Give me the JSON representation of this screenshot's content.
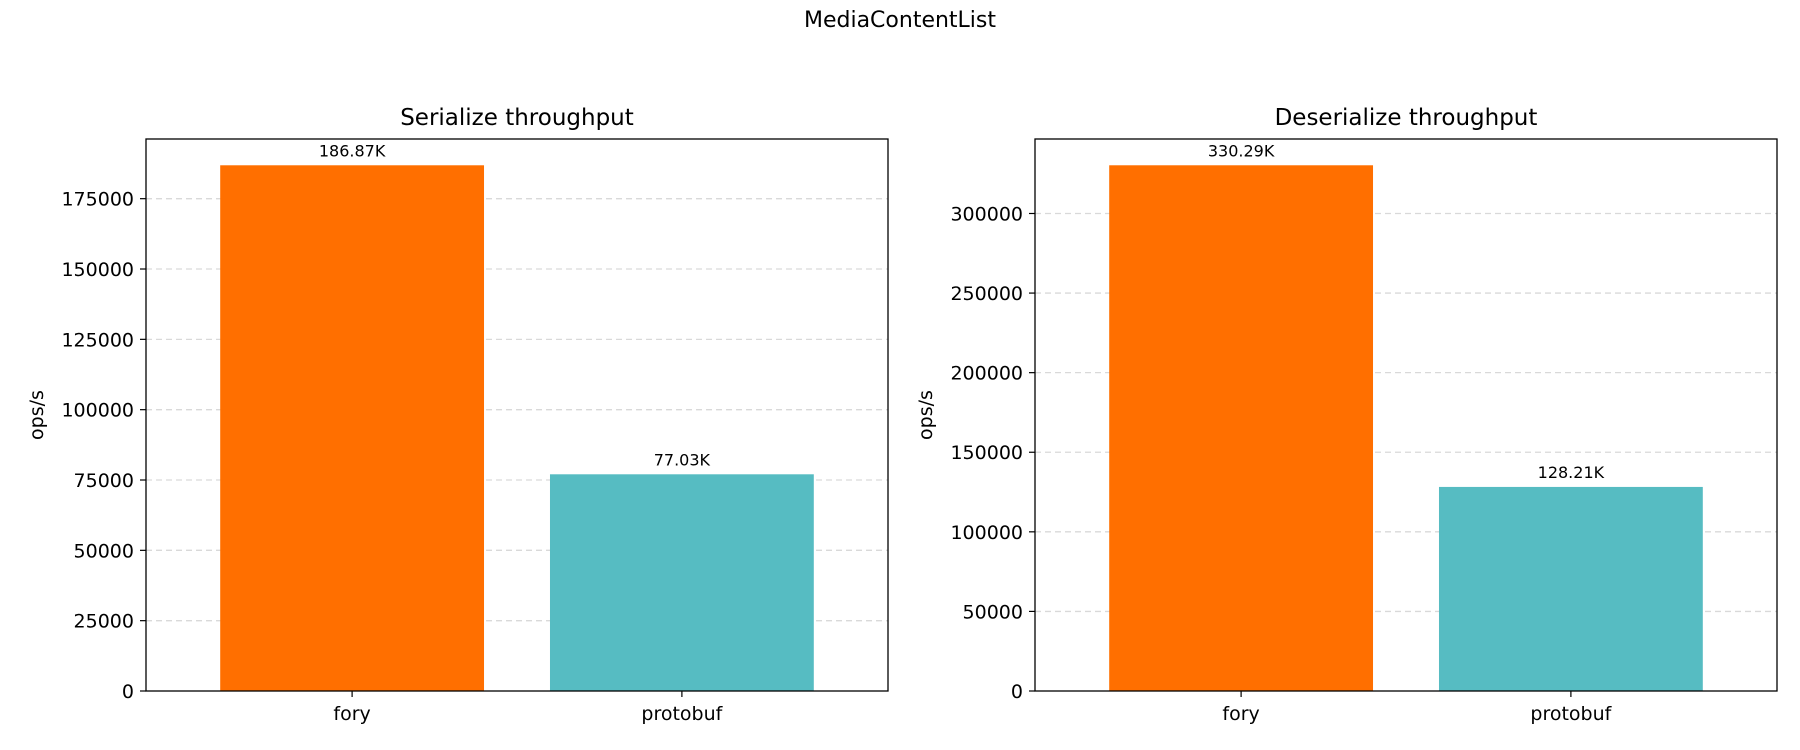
{
  "figure": {
    "title": "MediaContentList"
  },
  "chart_data": [
    {
      "type": "bar",
      "title": "Serialize throughput",
      "xlabel": "",
      "ylabel": "ops/s",
      "categories": [
        "fory",
        "protobuf"
      ],
      "values": [
        186870,
        77030
      ],
      "data_labels": [
        "186.87K",
        "77.03K"
      ],
      "colors": [
        "#ff6f00",
        "#56bcc2"
      ],
      "ylim": [
        0,
        196213
      ],
      "yticks": [
        0,
        25000,
        50000,
        75000,
        100000,
        125000,
        150000,
        175000
      ],
      "grid": "y-dashed",
      "legend": "none"
    },
    {
      "type": "bar",
      "title": "Deserialize throughput",
      "xlabel": "",
      "ylabel": "ops/s",
      "categories": [
        "fory",
        "protobuf"
      ],
      "values": [
        330290,
        128210
      ],
      "data_labels": [
        "330.29K",
        "128.21K"
      ],
      "colors": [
        "#ff6f00",
        "#56bcc2"
      ],
      "ylim": [
        0,
        346800
      ],
      "yticks": [
        0,
        50000,
        100000,
        150000,
        200000,
        250000,
        300000
      ],
      "grid": "y-dashed",
      "legend": "none"
    }
  ]
}
